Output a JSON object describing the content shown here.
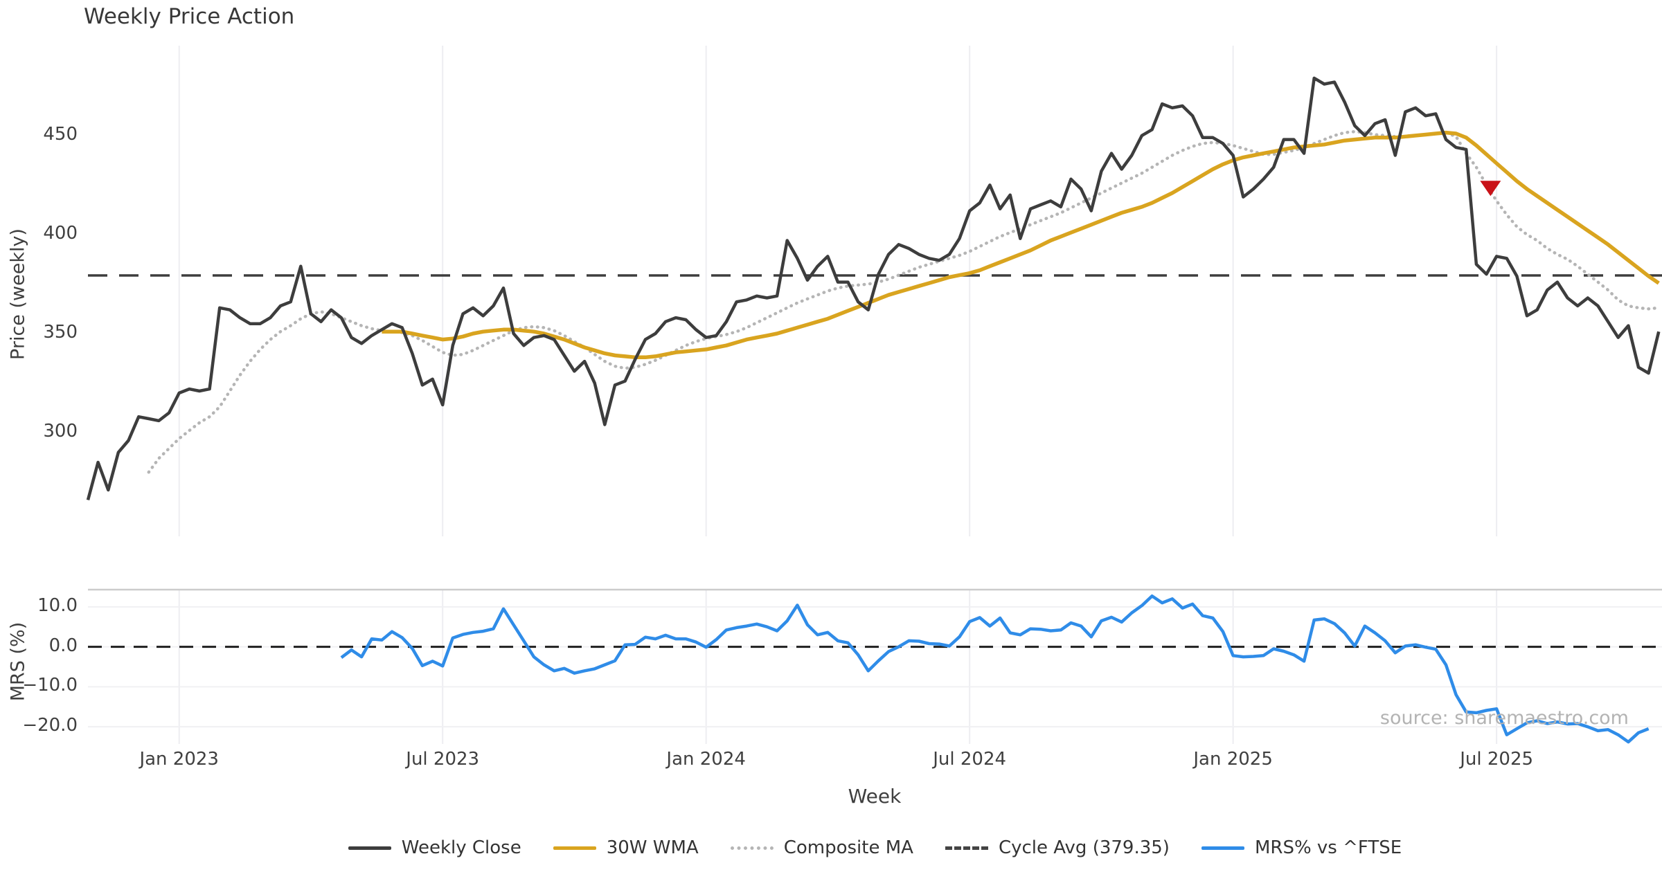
{
  "watermark": "source: sharemaestro.com",
  "legend": {
    "position": "bottom",
    "items": [
      {
        "label": "Weekly Close",
        "color": "#3d3d3d",
        "style": "solid"
      },
      {
        "label": "30W WMA",
        "color": "#d9a41f",
        "style": "solid"
      },
      {
        "label": "Composite MA",
        "color": "#b5b5b5",
        "style": "dotted"
      },
      {
        "label": "Cycle Avg (379.35)",
        "color": "#444444",
        "style": "dashed"
      },
      {
        "label": "MRS% vs ^FTSE",
        "color": "#2f8ce8",
        "style": "solid"
      }
    ]
  },
  "chart_data": [
    {
      "type": "line",
      "panel": "price",
      "title": "Weekly Price Action",
      "ylabel": "Price (weekly)",
      "xlabel": "Week",
      "grid": "vertical-light",
      "ylim": [
        247.6,
        495.4
      ],
      "yticks": [
        {
          "v": 300,
          "label": "300"
        },
        {
          "v": 350,
          "label": "350"
        },
        {
          "v": 400,
          "label": "400"
        },
        {
          "v": 450,
          "label": "450"
        }
      ],
      "xticks": [
        {
          "i": 9,
          "label": "Jan 2023"
        },
        {
          "i": 35,
          "label": "Jul 2023"
        },
        {
          "i": 61,
          "label": "Jan 2024"
        },
        {
          "i": 87,
          "label": "Jul 2024"
        },
        {
          "i": 113,
          "label": "Jan 2025"
        },
        {
          "i": 139,
          "label": "Jul 2025"
        }
      ],
      "cycle_avg": 379.35,
      "signal_marker": {
        "i": 138.4,
        "price": 424,
        "shape": "triangle-down",
        "color": "#c91218"
      },
      "series": [
        {
          "name": "Composite MA",
          "color": "#b5b5b5",
          "style": "dotted",
          "width": 4.5,
          "start_idx": 6,
          "values": [
            280,
            287,
            292,
            297,
            301,
            305,
            308,
            313,
            321,
            329,
            336,
            342,
            347,
            351,
            354,
            357.5,
            360,
            361,
            360,
            358,
            356,
            354,
            352.5,
            351.5,
            351,
            350.5,
            349,
            346.5,
            343.5,
            340.5,
            339,
            339.5,
            341.5,
            344,
            346.5,
            349,
            351.5,
            353,
            353.5,
            353,
            351.5,
            349,
            346,
            343,
            339.5,
            336,
            333.5,
            332.5,
            333,
            334.5,
            336.5,
            339,
            341.5,
            344,
            346,
            347.5,
            348.5,
            349.5,
            351,
            353,
            355.5,
            358,
            360.5,
            363,
            365.5,
            367.5,
            369.5,
            371.5,
            373,
            374,
            374.5,
            375,
            376,
            377.5,
            379.5,
            381.5,
            383.5,
            385,
            386.5,
            388,
            389.5,
            391.5,
            394,
            396.5,
            399,
            401,
            403,
            405,
            407,
            409,
            411,
            413.5,
            416,
            418.5,
            421,
            423.5,
            426,
            428.5,
            431,
            434,
            437,
            440,
            442.5,
            444.5,
            446,
            446.5,
            446,
            445,
            443.5,
            442,
            440.5,
            440.5,
            441.5,
            442.5,
            444,
            446,
            448,
            450,
            451.5,
            452,
            451.5,
            450.5,
            450,
            449.5,
            449.5,
            450,
            450.5,
            451,
            451.5,
            449.5,
            441,
            434,
            425,
            417,
            410,
            404,
            400,
            397,
            393,
            390,
            387.5,
            384,
            380,
            376,
            372,
            367,
            364,
            363,
            362.5,
            363
          ]
        },
        {
          "name": "30W WMA",
          "color": "#d9a41f",
          "style": "solid",
          "width": 5.5,
          "start_idx": 29,
          "values": [
            351,
            351,
            351,
            350,
            349,
            348,
            347,
            347.5,
            348.5,
            350,
            351,
            351.5,
            352,
            352,
            351.5,
            351,
            350,
            348.5,
            347,
            345,
            343,
            341.5,
            340,
            339,
            338.5,
            338,
            338,
            338.5,
            339.5,
            340.5,
            341,
            341.5,
            342,
            343,
            344,
            345.5,
            347,
            348,
            349,
            350,
            351.5,
            353,
            354.5,
            356,
            357.5,
            359.5,
            361.5,
            363.5,
            365.5,
            367.5,
            369.5,
            371,
            372.5,
            374,
            375.5,
            377,
            378.5,
            379.5,
            380.5,
            382,
            384,
            386,
            388,
            390,
            392,
            394.5,
            397,
            399,
            401,
            403,
            405,
            407,
            409,
            411,
            412.5,
            414,
            416,
            418.5,
            421,
            424,
            427,
            430,
            433,
            435.5,
            437.5,
            439,
            440,
            441,
            442,
            443,
            444,
            444.5,
            445,
            445.5,
            446.5,
            447.5,
            448,
            448.5,
            449,
            449,
            449,
            449.5,
            450,
            450.5,
            451,
            451.5,
            451,
            449,
            445,
            440.5,
            436,
            431.5,
            427,
            423,
            419.5,
            416,
            412.5,
            409,
            405.5,
            402,
            398.5,
            395,
            391,
            387,
            383,
            379,
            375.5
          ]
        },
        {
          "name": "Weekly Close",
          "color": "#3d3d3d",
          "style": "solid",
          "width": 4.5,
          "start_idx": 0,
          "values": [
            266,
            285,
            271,
            290,
            296,
            308,
            307,
            306,
            310,
            320,
            322,
            321,
            322,
            363,
            362,
            358,
            355,
            355,
            358,
            364,
            366,
            384,
            360,
            356,
            362,
            358,
            348,
            345,
            349,
            352,
            355,
            353,
            340,
            324,
            327,
            314,
            344,
            360,
            363,
            359,
            364,
            373,
            350,
            344,
            348,
            349,
            347,
            339,
            331,
            336,
            325,
            304,
            324,
            326,
            337,
            347,
            350,
            356,
            358,
            357,
            352,
            348,
            349,
            356,
            366,
            367,
            369,
            368,
            369,
            397,
            388,
            377,
            384,
            389,
            376,
            376,
            366,
            362,
            380,
            390,
            395,
            393,
            390,
            388,
            387,
            390,
            398,
            412,
            416,
            425,
            413,
            420,
            398,
            413,
            415,
            417,
            414,
            428,
            423,
            412,
            432,
            441,
            433,
            440,
            450,
            453,
            466,
            464,
            465,
            460,
            449,
            449,
            446,
            440,
            419,
            423,
            428,
            434,
            448,
            448,
            441,
            479,
            476,
            477,
            467,
            455,
            450,
            456,
            458,
            440,
            462,
            464,
            460,
            461,
            448,
            444,
            443,
            385,
            380,
            389,
            388,
            379,
            359,
            362,
            372,
            376,
            368,
            364,
            368,
            364,
            356,
            348,
            354,
            333,
            330,
            351
          ]
        }
      ]
    },
    {
      "type": "line",
      "panel": "mrs",
      "ylabel": "MRS (%)",
      "grid": "both-light",
      "ylim": [
        -24.3,
        14.3
      ],
      "zero_line": 0.0,
      "yticks": [
        {
          "v": 10,
          "label": "10.0"
        },
        {
          "v": 0,
          "label": "0.0"
        },
        {
          "v": -10,
          "label": "−10.0"
        },
        {
          "v": -20,
          "label": "−20.0"
        }
      ],
      "series": [
        {
          "name": "MRS% vs ^FTSE",
          "color": "#2f8ce8",
          "style": "solid",
          "width": 4.5,
          "start_idx": 25,
          "values": [
            -2.7,
            -0.8,
            -2.5,
            2.0,
            1.7,
            3.8,
            2.3,
            -0.4,
            -4.7,
            -3.6,
            -4.8,
            2.2,
            3.1,
            3.6,
            3.9,
            4.5,
            9.5,
            5.5,
            1.5,
            -2.5,
            -4.5,
            -6.0,
            -5.4,
            -6.6,
            -6.0,
            -5.5,
            -4.5,
            -3.5,
            0.5,
            0.6,
            2.4,
            2.0,
            2.9,
            2.0,
            2.0,
            1.2,
            -0.1,
            1.8,
            4.2,
            4.8,
            5.2,
            5.7,
            5.0,
            4.0,
            6.5,
            10.4,
            5.5,
            3.0,
            3.6,
            1.5,
            1.0,
            -2.0,
            -6.0,
            -3.5,
            -1.2,
            0.0,
            1.5,
            1.4,
            0.8,
            0.7,
            0.2,
            2.5,
            6.3,
            7.3,
            5.2,
            7.2,
            3.5,
            3.0,
            4.5,
            4.4,
            4.0,
            4.2,
            6.0,
            5.2,
            2.5,
            6.5,
            7.4,
            6.2,
            8.5,
            10.3,
            12.7,
            11.0,
            12.0,
            9.7,
            10.7,
            7.8,
            7.2,
            3.8,
            -2.2,
            -2.5,
            -2.4,
            -2.2,
            -0.5,
            -1.1,
            -2.0,
            -3.6,
            6.7,
            7.0,
            5.8,
            3.5,
            0.2,
            5.2,
            3.5,
            1.5,
            -1.5,
            0.2,
            0.5,
            -0.1,
            -0.6,
            -4.5,
            -12.0,
            -16.3,
            -16.5,
            -15.9,
            -15.5,
            -22.0,
            -20.5,
            -19.0,
            -18.5,
            -19.2,
            -18.8,
            -19.3,
            -19.2,
            -20.0,
            -21.0,
            -20.7,
            -22.0,
            -23.8,
            -21.5,
            -20.5
          ]
        }
      ]
    }
  ]
}
